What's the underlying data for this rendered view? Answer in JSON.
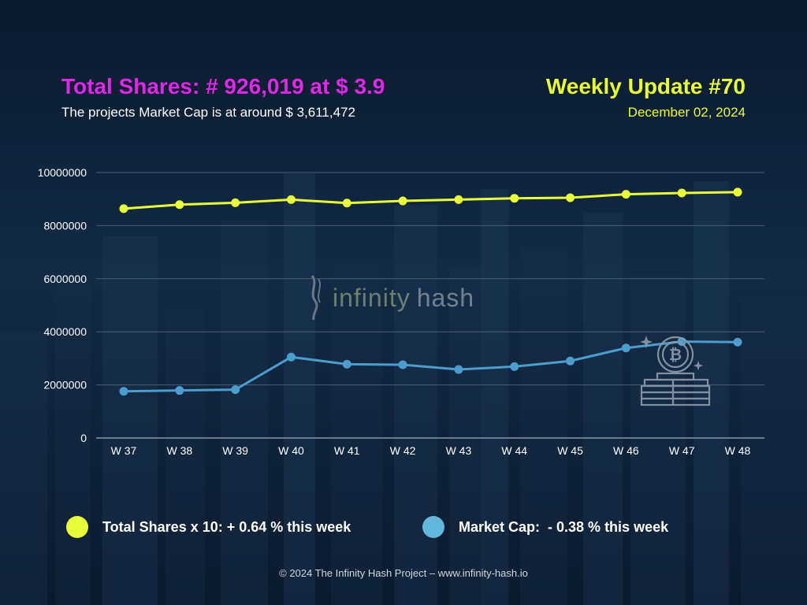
{
  "header": {
    "title": "Total Shares: # 926,019 at $ 3.9",
    "subtitle": "The projects Market Cap is at around $ 3,611,472",
    "update_title": "Weekly Update #70",
    "update_date": "December 02, 2024"
  },
  "watermark": {
    "word1": "infinity",
    "word2": "hash"
  },
  "colors": {
    "shares": "#e9fc3a",
    "market_cap": "#4b9ccf",
    "market_cap_legend": "#63b6dc",
    "title_accent": "#e026e8",
    "grid": "#4a5d74"
  },
  "legend": {
    "shares_label": "Total Shares x 10: + 0.64 % this week",
    "market_cap_label": "Market Cap:  - 0.38 % this week"
  },
  "footer": {
    "text": "© 2024 The Infinity Hash Project – www.infinity-hash.io"
  },
  "icons": {
    "coin_stack": "bitcoin-coin-stack-icon"
  },
  "chart_data": {
    "type": "line",
    "categories": [
      "W 37",
      "W 38",
      "W 39",
      "W 40",
      "W 41",
      "W 42",
      "W 43",
      "W 44",
      "W 45",
      "W 46",
      "W 47",
      "W 48"
    ],
    "ylim": [
      0,
      10000000
    ],
    "yticks": [
      0,
      2000000,
      4000000,
      6000000,
      8000000,
      10000000
    ],
    "ytick_labels": [
      "0",
      "2000000",
      "4000000",
      "6000000",
      "8000000",
      "10000000"
    ],
    "grid": true,
    "legend_position": "bottom",
    "series": [
      {
        "name": "Total Shares x 10",
        "color": "#e9fc3a",
        "values": [
          8640000,
          8790000,
          8860000,
          8980000,
          8850000,
          8930000,
          8980000,
          9030000,
          9050000,
          9180000,
          9230000,
          9260190
        ]
      },
      {
        "name": "Market Cap",
        "color": "#4b9ccf",
        "values": [
          1760000,
          1790000,
          1820000,
          3050000,
          2780000,
          2760000,
          2580000,
          2690000,
          2900000,
          3390000,
          3630000,
          3611472
        ]
      }
    ]
  }
}
